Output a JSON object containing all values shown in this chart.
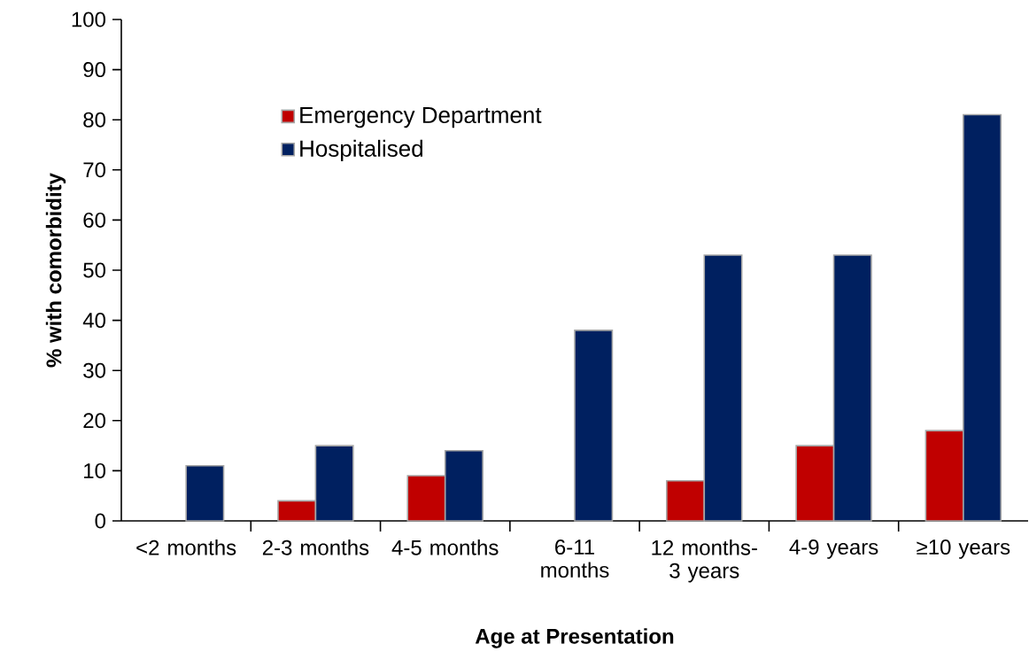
{
  "chart_data": {
    "type": "bar",
    "xlabel": "Age at Presentation",
    "ylabel": "% with comorbidity",
    "categories": [
      "<2 months",
      "2-3 months",
      "4-5 months",
      "6-11 months",
      "12 months-3 years",
      "4-9 years",
      "≥10 years"
    ],
    "series": [
      {
        "name": "Emergency Department",
        "color": "#c00000",
        "values": [
          null,
          4,
          9,
          null,
          8,
          15,
          18
        ]
      },
      {
        "name": "Hospitalised",
        "color": "#002060",
        "values": [
          11,
          15,
          14,
          38,
          53,
          53,
          81
        ]
      }
    ],
    "ylim": [
      0,
      100
    ],
    "yticks": [
      0,
      10,
      20,
      30,
      40,
      50,
      60,
      70,
      80,
      90,
      100
    ],
    "grid": false,
    "legend": "top left"
  }
}
